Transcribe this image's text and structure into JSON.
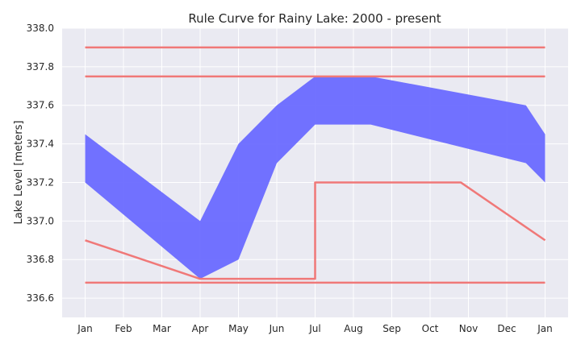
{
  "chart_data": {
    "type": "area",
    "title": "Rule Curve for Rainy Lake: 2000 - present",
    "xlabel": "",
    "ylabel": "Lake Level [meters]",
    "x_ticks": [
      "Jan",
      "Feb",
      "Mar",
      "Apr",
      "May",
      "Jun",
      "Jul",
      "Aug",
      "Sep",
      "Oct",
      "Nov",
      "Dec",
      "Jan"
    ],
    "y_ticks": [
      "336.6",
      "336.8",
      "337.0",
      "337.2",
      "337.4",
      "337.6",
      "337.8",
      "338.0"
    ],
    "ylim": [
      336.5,
      338.0
    ],
    "xlim": [
      -0.6,
      12.6
    ],
    "grid": true,
    "colors": {
      "band": "#6a6aff",
      "lines": "#f07878",
      "background": "#eaeaf2"
    },
    "band": {
      "x": [
        0,
        3,
        4,
        5,
        6,
        7,
        12
      ],
      "lower": [
        337.2,
        336.7,
        336.8,
        337.3,
        337.5,
        337.5,
        337.2
      ],
      "upper": [
        337.45,
        337.0,
        337.4,
        337.6,
        337.75,
        337.75,
        337.45
      ],
      "x_upper": [
        0,
        3,
        4,
        5,
        6,
        7.45,
        11.5,
        12
      ],
      "upper_full": [
        337.45,
        337.0,
        337.4,
        337.6,
        337.75,
        337.75,
        337.6,
        337.45
      ],
      "x_lower": [
        0,
        3,
        4,
        5,
        6,
        7.45,
        11.5,
        12
      ],
      "lower_full": [
        337.2,
        336.7,
        336.8,
        337.3,
        337.5,
        337.5,
        337.3,
        337.2
      ]
    },
    "series": [
      {
        "x": [
          0,
          12
        ],
        "y": [
          337.9,
          337.9
        ]
      },
      {
        "x": [
          0,
          12
        ],
        "y": [
          337.75,
          337.75
        ]
      },
      {
        "x": [
          0,
          12
        ],
        "y": [
          336.68,
          336.68
        ]
      },
      {
        "x": [
          0,
          3,
          6,
          6,
          9.8,
          12
        ],
        "y": [
          336.9,
          336.7,
          336.7,
          337.2,
          337.2,
          336.9
        ]
      }
    ]
  }
}
